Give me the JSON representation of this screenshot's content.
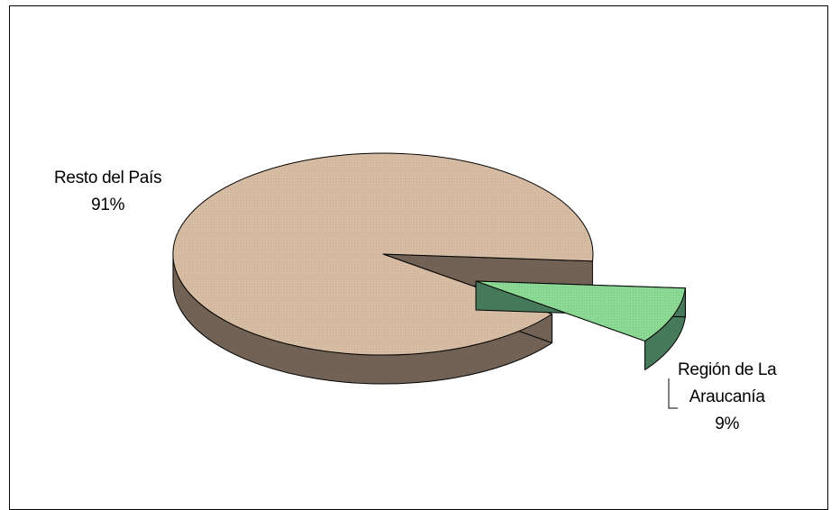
{
  "chart_data": {
    "type": "pie",
    "style": "3d-exploded",
    "slices": [
      {
        "label": "Resto del País",
        "value": 91,
        "value_label": "91%",
        "color": "#d7bca4",
        "side_color": "#726256"
      },
      {
        "label": "Región de La Araucanía",
        "label_line1": "Región de La",
        "label_line2": "Araucanía",
        "value": 9,
        "value_label": "9%",
        "color": "#8cd996",
        "side_color": "#46785a",
        "exploded": true
      }
    ],
    "legend": "none",
    "title": ""
  }
}
